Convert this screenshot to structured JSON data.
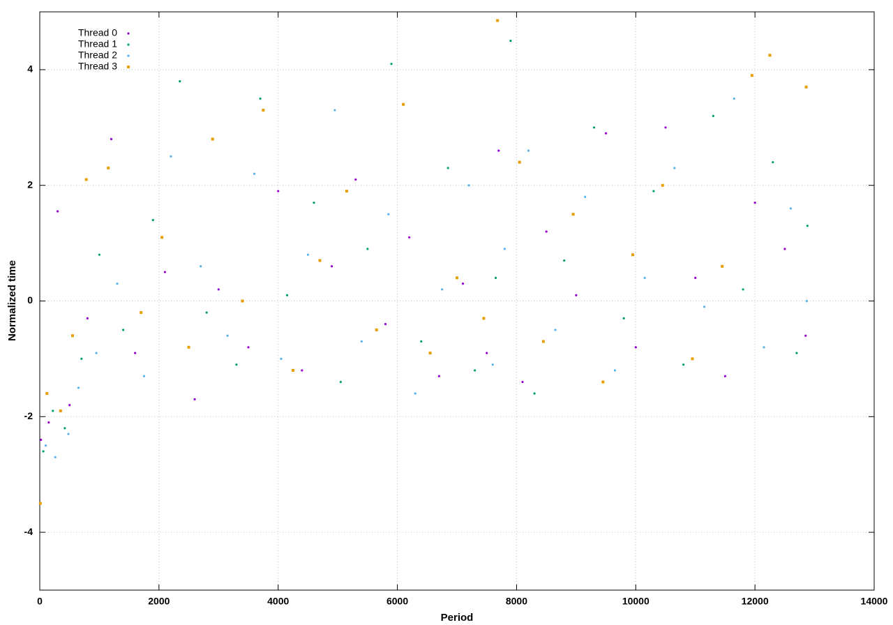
{
  "chart_data": {
    "type": "scatter",
    "xlabel": "Period",
    "ylabel": "Normalized time",
    "xlim": [
      0,
      14000
    ],
    "ylim": [
      -5,
      5
    ],
    "xticks": [
      0,
      2000,
      4000,
      6000,
      8000,
      10000,
      12000,
      14000
    ],
    "yticks": [
      -4,
      -2,
      0,
      2,
      4
    ],
    "grid": true,
    "legend": "top-left",
    "series": [
      {
        "name": "Thread 0",
        "color": "#9400d3",
        "marker": "dot",
        "x": [
          20,
          150,
          300,
          500,
          800,
          1200,
          1600,
          2100,
          2600,
          3000,
          3500,
          4000,
          4400,
          4900,
          5300,
          5800,
          6200,
          6700,
          7100,
          7500,
          7700,
          8100,
          8500,
          9000,
          9500,
          10000,
          10500,
          11000,
          11500,
          12000,
          12500,
          12850
        ],
        "values": [
          -2.4,
          -2.1,
          1.55,
          -1.8,
          -0.3,
          2.8,
          -0.9,
          0.5,
          -1.7,
          0.2,
          -0.8,
          1.9,
          -1.2,
          0.6,
          2.1,
          -0.4,
          1.1,
          -1.3,
          0.3,
          -0.9,
          2.6,
          -1.4,
          1.2,
          0.1,
          2.9,
          -0.8,
          3.0,
          0.4,
          -1.3,
          1.7,
          0.9,
          -0.6
        ]
      },
      {
        "name": "Thread 1",
        "color": "#009e73",
        "marker": "dot",
        "x": [
          60,
          220,
          420,
          700,
          1000,
          1400,
          1900,
          2350,
          2800,
          3300,
          3700,
          4150,
          4600,
          5050,
          5500,
          5900,
          6400,
          6850,
          7300,
          7650,
          7900,
          8300,
          8800,
          9300,
          9800,
          10300,
          10800,
          11300,
          11800,
          12300,
          12700,
          12880
        ],
        "values": [
          -2.6,
          -1.9,
          -2.2,
          -1.0,
          0.8,
          -0.5,
          1.4,
          3.8,
          -0.2,
          -1.1,
          3.5,
          0.1,
          1.7,
          -1.4,
          0.9,
          4.1,
          -0.7,
          2.3,
          -1.2,
          0.4,
          4.5,
          -1.6,
          0.7,
          3.0,
          -0.3,
          1.9,
          -1.1,
          3.2,
          0.2,
          2.4,
          -0.9,
          1.3
        ]
      },
      {
        "name": "Thread 2",
        "color": "#56b4e9",
        "marker": "dot",
        "x": [
          100,
          260,
          480,
          650,
          950,
          1300,
          1750,
          2200,
          2700,
          3150,
          3600,
          4050,
          4500,
          4950,
          5400,
          5850,
          6300,
          6750,
          7200,
          7600,
          7800,
          8200,
          8650,
          9150,
          9650,
          10150,
          10650,
          11150,
          11650,
          12150,
          12600,
          12870
        ],
        "values": [
          -2.5,
          -2.7,
          -2.3,
          -1.5,
          -0.9,
          0.3,
          -1.3,
          2.5,
          0.6,
          -0.6,
          2.2,
          -1.0,
          0.8,
          3.3,
          -0.7,
          1.5,
          -1.6,
          0.2,
          2.0,
          -1.1,
          0.9,
          2.6,
          -0.5,
          1.8,
          -1.2,
          0.4,
          2.3,
          -0.1,
          3.5,
          -0.8,
          1.6,
          0.0
        ]
      },
      {
        "name": "Thread 3",
        "color": "#e69f00",
        "marker": "square",
        "x": [
          10,
          120,
          350,
          550,
          780,
          1150,
          1700,
          2050,
          2500,
          2900,
          3400,
          3750,
          4250,
          4700,
          5150,
          5650,
          6100,
          6550,
          7000,
          7450,
          7680,
          8050,
          8450,
          8950,
          9450,
          9950,
          10450,
          10950,
          11450,
          11950,
          12250,
          12860
        ],
        "values": [
          -3.5,
          -1.6,
          -1.9,
          -0.6,
          2.1,
          2.3,
          -0.2,
          1.1,
          -0.8,
          2.8,
          0.0,
          3.3,
          -1.2,
          0.7,
          1.9,
          -0.5,
          3.4,
          -0.9,
          0.4,
          -0.3,
          4.85,
          2.4,
          -0.7,
          1.5,
          -1.4,
          0.8,
          2.0,
          -1.0,
          0.6,
          3.9,
          4.25,
          3.7
        ]
      }
    ]
  }
}
